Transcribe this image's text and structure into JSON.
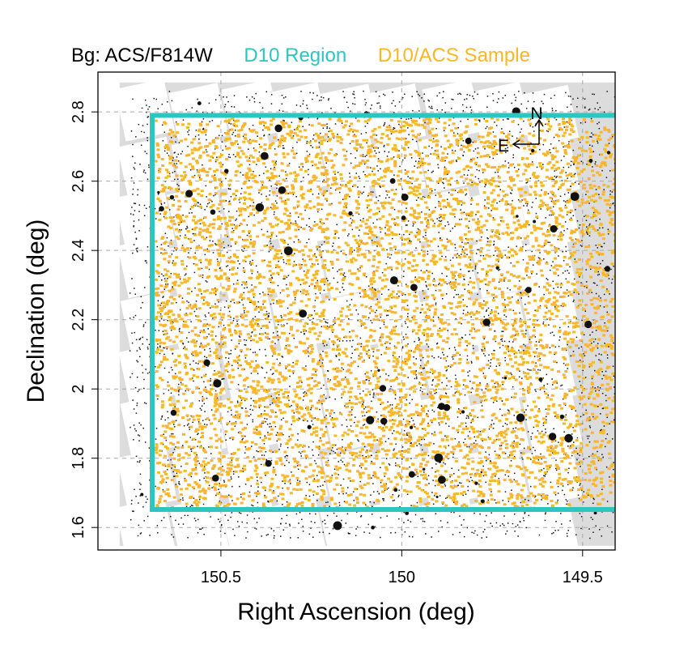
{
  "chart_data": {
    "type": "scatter",
    "title_parts": [
      {
        "text": "Bg: ACS/F814W",
        "color": "#000000"
      },
      {
        "text": "D10 Region",
        "color": "#2ec4c0"
      },
      {
        "text": "D10/ACS Sample",
        "color": "#f8b62a"
      }
    ],
    "xlabel": "Right Ascension (deg)",
    "ylabel": "Declination (deg)",
    "xlim": [
      150.84,
      149.41
    ],
    "ylim": [
      1.535,
      2.915
    ],
    "x_ticks": [
      150.5,
      150,
      149.5
    ],
    "x_tick_labels": [
      "150.5",
      "150",
      "149.5"
    ],
    "y_ticks": [
      1.6,
      1.8,
      2.0,
      2.2,
      2.4,
      2.6,
      2.8
    ],
    "y_tick_labels": [
      "1.6",
      "1.8",
      "2",
      "2.2",
      "2.4",
      "2.6",
      "2.8"
    ],
    "grid": true,
    "background_layer": "ACS/F814W mosaic (greyscale)",
    "acs_coverage_ra": [
      150.78,
      149.355
    ],
    "acs_coverage_dec": [
      1.547,
      2.885
    ],
    "d10_region": {
      "ra": [
        150.69,
        149.345
      ],
      "dec": [
        1.652,
        2.79
      ],
      "color": "#2ec4c0"
    },
    "sample": {
      "name": "D10/ACS Sample",
      "color": "#f8b62a",
      "ra": [
        150.69,
        149.41
      ],
      "dec": [
        1.652,
        2.79
      ]
    },
    "compass": {
      "north_label": "N",
      "east_label": "E"
    }
  }
}
